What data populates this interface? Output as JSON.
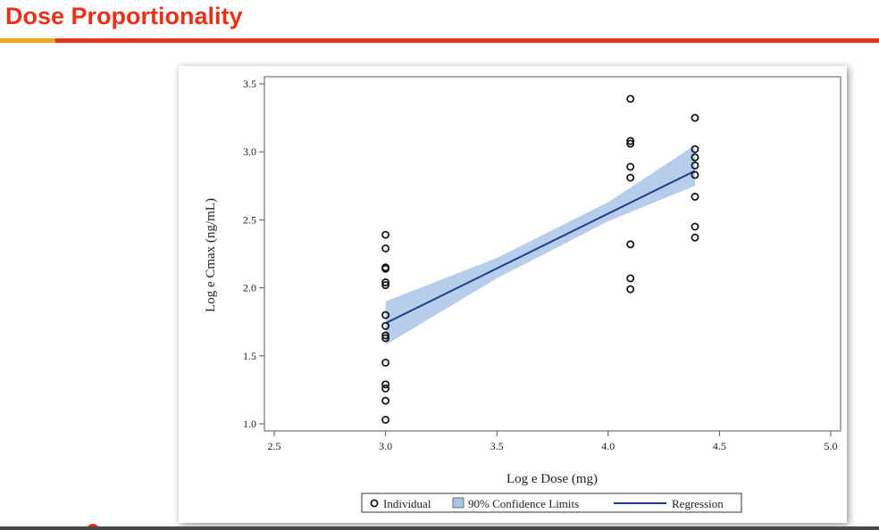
{
  "slide": {
    "title": "Dose Proportionality"
  },
  "colors": {
    "title": "#e8311a",
    "accent": "#f2a51a",
    "band": "#a9c4e8",
    "regression": "#1f3f8a",
    "marker": "#111111"
  },
  "chart_data": {
    "type": "scatter",
    "xlabel": "Log e Dose (mg)",
    "ylabel": "Log e Cmax (ng/mL)",
    "xlim": [
      2.5,
      5.0
    ],
    "ylim": [
      1.0,
      3.5
    ],
    "xticks": [
      "2.5",
      "3.0",
      "3.5",
      "4.0",
      "4.5",
      "5.0"
    ],
    "yticks": [
      "1.0",
      "1.5",
      "2.0",
      "2.5",
      "3.0",
      "3.5"
    ],
    "grid": false,
    "legend_position": "bottom",
    "legend": {
      "individual": "Individual",
      "confidence": "90% Confidence Limits",
      "regression": "Regression"
    },
    "individual_points": [
      [
        3.0,
        2.39
      ],
      [
        3.0,
        2.29
      ],
      [
        3.0,
        2.15
      ],
      [
        3.0,
        2.14
      ],
      [
        3.0,
        2.04
      ],
      [
        3.0,
        2.02
      ],
      [
        3.0,
        1.8
      ],
      [
        3.0,
        1.72
      ],
      [
        3.0,
        1.65
      ],
      [
        3.0,
        1.63
      ],
      [
        3.0,
        1.45
      ],
      [
        3.0,
        1.29
      ],
      [
        3.0,
        1.26
      ],
      [
        3.0,
        1.17
      ],
      [
        3.0,
        1.03
      ],
      [
        4.1,
        3.39
      ],
      [
        4.1,
        3.08
      ],
      [
        4.1,
        3.06
      ],
      [
        4.1,
        2.89
      ],
      [
        4.1,
        2.81
      ],
      [
        4.1,
        2.32
      ],
      [
        4.1,
        2.07
      ],
      [
        4.1,
        1.99
      ],
      [
        4.39,
        3.25
      ],
      [
        4.39,
        3.02
      ],
      [
        4.39,
        2.96
      ],
      [
        4.39,
        2.9
      ],
      [
        4.39,
        2.83
      ],
      [
        4.39,
        2.67
      ],
      [
        4.39,
        2.45
      ],
      [
        4.39,
        2.37
      ]
    ],
    "regression": [
      [
        3.0,
        1.74
      ],
      [
        4.39,
        2.86
      ]
    ],
    "confidence_limits": {
      "x": [
        3.0,
        3.5,
        4.0,
        4.39
      ],
      "lower": [
        1.58,
        2.07,
        2.49,
        2.75
      ],
      "upper": [
        1.9,
        2.22,
        2.63,
        3.05
      ]
    }
  }
}
